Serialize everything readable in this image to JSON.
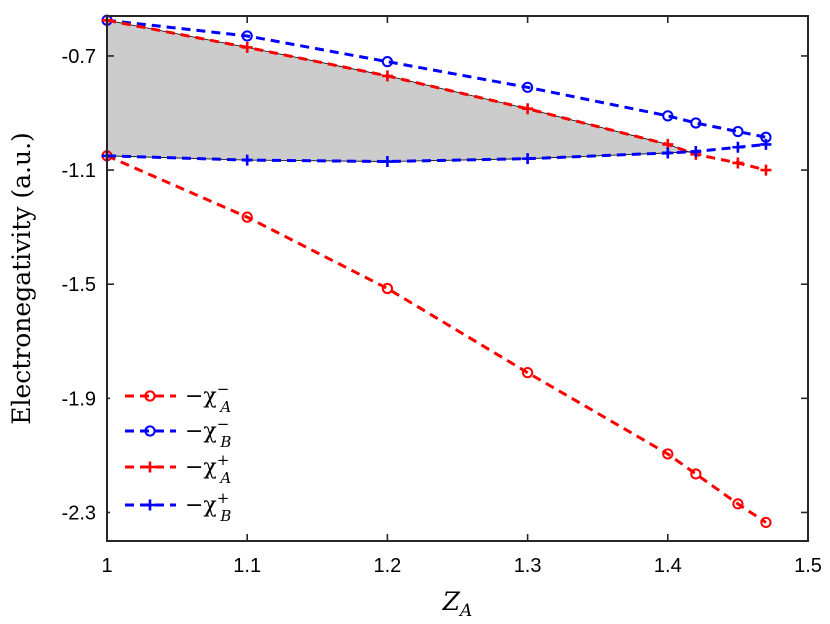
{
  "chart_data": {
    "type": "line",
    "xlabel": "Z_A",
    "ylabel": "Electronegativity (a.u.)",
    "xlim": [
      1,
      1.5
    ],
    "ylim": [
      -2.4,
      -0.56
    ],
    "xticks": [
      1,
      1.1,
      1.2,
      1.3,
      1.4,
      1.5
    ],
    "xtick_labels": [
      "1",
      "1.1",
      "1.2",
      "1.3",
      "1.4",
      "1.5"
    ],
    "yticks": [
      -0.7,
      -1.1,
      -1.5,
      -1.9,
      -2.3
    ],
    "ytick_labels": [
      "-0.7",
      "-1.1",
      "-1.5",
      "-1.9",
      "-2.3"
    ],
    "grid": false,
    "legend_position": "bottom-left",
    "shaded_region": {
      "color": "#cccccc",
      "between": [
        "minus_chi_A_plus",
        "minus_chi_B_plus"
      ],
      "x_range": [
        1,
        1.422
      ]
    },
    "series": [
      {
        "name": "−χ_A^−",
        "color": "#ff0000",
        "marker": "circle",
        "linestyle": "dashed",
        "x": [
          1,
          1.1,
          1.2,
          1.3,
          1.4,
          1.42,
          1.45,
          1.47
        ],
        "y": [
          -1.05,
          -1.265,
          -1.515,
          -1.81,
          -2.095,
          -2.165,
          -2.27,
          -2.335
        ]
      },
      {
        "name": "−χ_B^−",
        "color": "#0000ff",
        "marker": "circle",
        "linestyle": "dashed",
        "x": [
          1,
          1.1,
          1.2,
          1.3,
          1.4,
          1.42,
          1.45,
          1.47
        ],
        "y": [
          -0.575,
          -0.63,
          -0.72,
          -0.81,
          -0.91,
          -0.935,
          -0.965,
          -0.985
        ]
      },
      {
        "name": "−χ_A^+",
        "color": "#ff0000",
        "marker": "plus",
        "linestyle": "dashed",
        "x": [
          1,
          1.1,
          1.2,
          1.3,
          1.4,
          1.42,
          1.45,
          1.47
        ],
        "y": [
          -0.575,
          -0.67,
          -0.77,
          -0.885,
          -1.01,
          -1.045,
          -1.075,
          -1.1
        ]
      },
      {
        "name": "−χ_B^+",
        "color": "#0000ff",
        "marker": "plus",
        "linestyle": "dashed",
        "x": [
          1,
          1.1,
          1.2,
          1.3,
          1.4,
          1.42,
          1.45,
          1.47
        ],
        "y": [
          -1.05,
          -1.065,
          -1.07,
          -1.06,
          -1.04,
          -1.035,
          -1.02,
          -1.01
        ]
      }
    ]
  }
}
